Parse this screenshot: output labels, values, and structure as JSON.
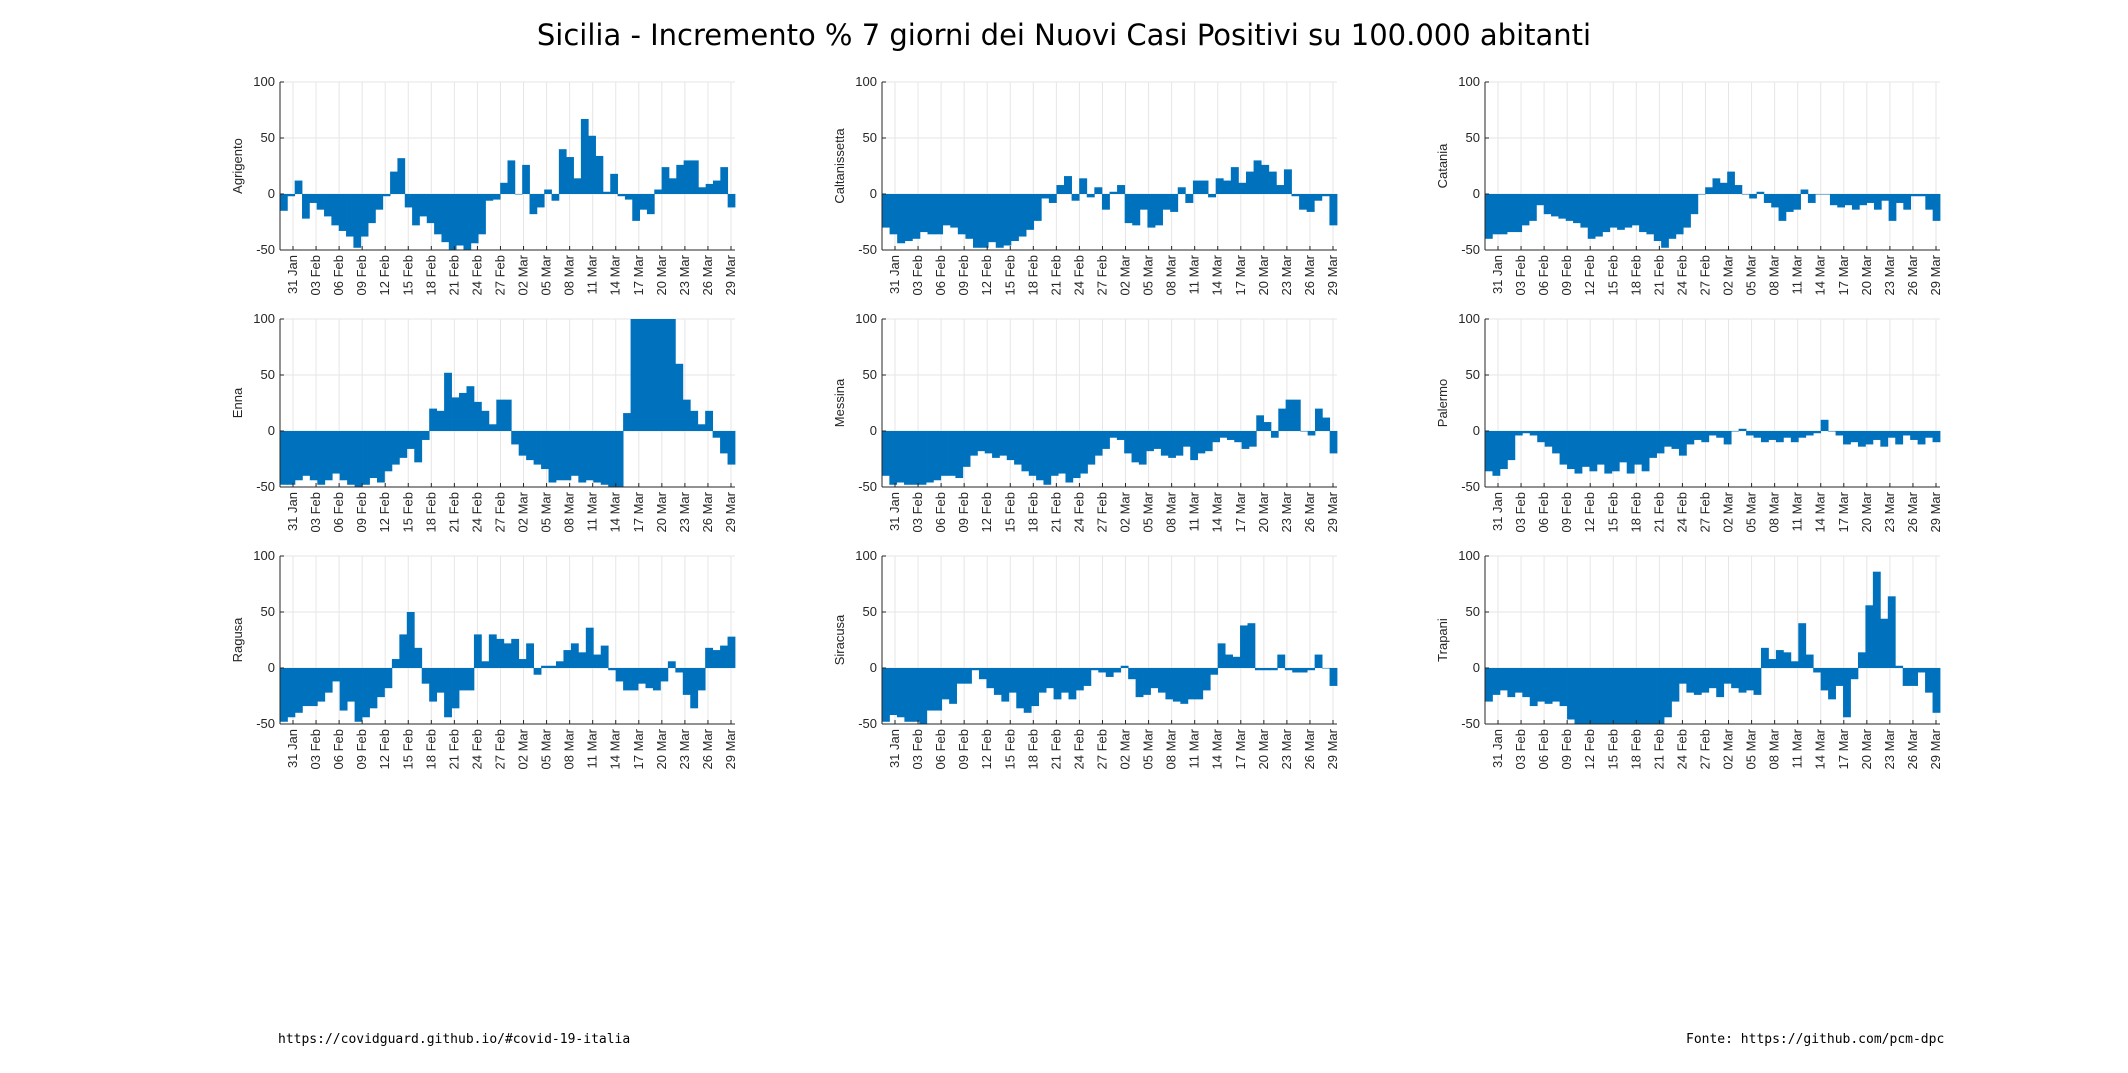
{
  "title": "Sicilia - Incremento % 7 giorni dei Nuovi Casi Positivi su 100.000 abitanti",
  "footer": {
    "left": "https://covidguard.github.io/#covid-19-italia",
    "right": "Fonte: https://github.com/pcm-dpc"
  },
  "colors": {
    "bar": "#0072BD",
    "grid": "#E6E6E6",
    "axis": "#262626"
  },
  "chart_data": [
    {
      "type": "bar",
      "title": "",
      "ylabel": "Agrigento",
      "ylim": [
        -50,
        100
      ],
      "yticks": [
        -50,
        0,
        50,
        100
      ],
      "grid": true,
      "xtick_labels": [
        "31 Jan",
        "03 Feb",
        "06 Feb",
        "09 Feb",
        "12 Feb",
        "15 Feb",
        "18 Feb",
        "21 Feb",
        "24 Feb",
        "27 Feb",
        "02 Mar",
        "05 Mar",
        "08 Mar",
        "11 Mar",
        "14 Mar",
        "17 Mar",
        "20 Mar",
        "23 Mar",
        "26 Mar",
        "29 Mar"
      ],
      "values": [
        -15,
        -2,
        12,
        -22,
        -8,
        -14,
        -20,
        -28,
        -33,
        -38,
        -48,
        -38,
        -26,
        -14,
        -2,
        20,
        32,
        -12,
        -28,
        -20,
        -26,
        -36,
        -43,
        -50,
        -46,
        -50,
        -44,
        -36,
        -6,
        -5,
        10,
        30,
        0,
        26,
        -18,
        -12,
        4,
        -6,
        40,
        33,
        14,
        67,
        52,
        34,
        2,
        18,
        -2,
        -5,
        -24,
        -14,
        -18,
        4,
        24,
        14,
        26,
        30,
        30,
        6,
        9,
        12,
        24,
        -12
      ]
    },
    {
      "type": "bar",
      "title": "",
      "ylabel": "Caltanissetta",
      "ylim": [
        -50,
        100
      ],
      "yticks": [
        -50,
        0,
        50,
        100
      ],
      "grid": true,
      "xtick_labels": [
        "31 Jan",
        "03 Feb",
        "06 Feb",
        "09 Feb",
        "12 Feb",
        "15 Feb",
        "18 Feb",
        "21 Feb",
        "24 Feb",
        "27 Feb",
        "02 Mar",
        "05 Mar",
        "08 Mar",
        "11 Mar",
        "14 Mar",
        "17 Mar",
        "20 Mar",
        "23 Mar",
        "26 Mar",
        "29 Mar"
      ],
      "values": [
        -30,
        -36,
        -44,
        -42,
        -40,
        -34,
        -36,
        -36,
        -28,
        -30,
        -36,
        -40,
        -48,
        -48,
        -43,
        -48,
        -46,
        -42,
        -38,
        -32,
        -24,
        -4,
        -8,
        8,
        16,
        -6,
        14,
        -3,
        6,
        -14,
        2,
        8,
        -26,
        -28,
        -14,
        -30,
        -28,
        -14,
        -16,
        6,
        -8,
        12,
        12,
        -3,
        14,
        12,
        24,
        10,
        20,
        30,
        26,
        20,
        8,
        22,
        -2,
        -14,
        -16,
        -6,
        -2,
        -28
      ]
    },
    {
      "type": "bar",
      "title": "",
      "ylabel": "Catania",
      "ylim": [
        -50,
        100
      ],
      "yticks": [
        -50,
        0,
        50,
        100
      ],
      "grid": true,
      "xtick_labels": [
        "31 Jan",
        "03 Feb",
        "06 Feb",
        "09 Feb",
        "12 Feb",
        "15 Feb",
        "18 Feb",
        "21 Feb",
        "24 Feb",
        "27 Feb",
        "02 Mar",
        "05 Mar",
        "08 Mar",
        "11 Mar",
        "14 Mar",
        "17 Mar",
        "20 Mar",
        "23 Mar",
        "26 Mar",
        "29 Mar"
      ],
      "values": [
        -40,
        -36,
        -36,
        -34,
        -34,
        -28,
        -24,
        -10,
        -18,
        -20,
        -22,
        -24,
        -26,
        -30,
        -40,
        -38,
        -34,
        -30,
        -32,
        -30,
        -28,
        -34,
        -36,
        -42,
        -48,
        -40,
        -36,
        -30,
        -18,
        0,
        6,
        14,
        10,
        20,
        8,
        0,
        -4,
        2,
        -8,
        -12,
        -24,
        -16,
        -14,
        4,
        -8,
        0,
        0,
        -10,
        -12,
        -10,
        -14,
        -10,
        -8,
        -14,
        -6,
        -24,
        -8,
        -14,
        -2,
        -2,
        -14,
        -24
      ]
    },
    {
      "type": "bar",
      "title": "",
      "ylabel": "Enna",
      "ylim": [
        -50,
        100
      ],
      "yticks": [
        -50,
        0,
        50,
        100
      ],
      "grid": true,
      "xtick_labels": [
        "31 Jan",
        "03 Feb",
        "06 Feb",
        "09 Feb",
        "12 Feb",
        "15 Feb",
        "18 Feb",
        "21 Feb",
        "24 Feb",
        "27 Feb",
        "02 Mar",
        "05 Mar",
        "08 Mar",
        "11 Mar",
        "14 Mar",
        "17 Mar",
        "20 Mar",
        "23 Mar",
        "26 Mar",
        "29 Mar"
      ],
      "values": [
        -48,
        -48,
        -44,
        -40,
        -44,
        -48,
        -44,
        -38,
        -44,
        -48,
        -50,
        -48,
        -42,
        -46,
        -36,
        -30,
        -24,
        -16,
        -28,
        -8,
        20,
        18,
        52,
        30,
        34,
        40,
        26,
        18,
        6,
        28,
        28,
        -12,
        -22,
        -26,
        -30,
        -34,
        -46,
        -44,
        -44,
        -40,
        -46,
        -44,
        -46,
        -48,
        -50,
        -50,
        16,
        100,
        100,
        100,
        100,
        100,
        100,
        60,
        28,
        18,
        6,
        18,
        -6,
        -20,
        -30
      ]
    },
    {
      "type": "bar",
      "title": "",
      "ylabel": "Messina",
      "ylim": [
        -50,
        100
      ],
      "yticks": [
        -50,
        0,
        50,
        100
      ],
      "grid": true,
      "xtick_labels": [
        "31 Jan",
        "03 Feb",
        "06 Feb",
        "09 Feb",
        "12 Feb",
        "15 Feb",
        "18 Feb",
        "21 Feb",
        "24 Feb",
        "27 Feb",
        "02 Mar",
        "05 Mar",
        "08 Mar",
        "11 Mar",
        "14 Mar",
        "17 Mar",
        "20 Mar",
        "23 Mar",
        "26 Mar",
        "29 Mar"
      ],
      "values": [
        -40,
        -48,
        -46,
        -48,
        -48,
        -48,
        -46,
        -44,
        -40,
        -40,
        -42,
        -32,
        -22,
        -18,
        -20,
        -24,
        -22,
        -26,
        -30,
        -36,
        -40,
        -44,
        -48,
        -40,
        -38,
        -46,
        -42,
        -38,
        -30,
        -22,
        -16,
        -6,
        -8,
        -20,
        -28,
        -30,
        -18,
        -16,
        -22,
        -24,
        -22,
        -14,
        -26,
        -20,
        -18,
        -10,
        -6,
        -8,
        -10,
        -16,
        -14,
        14,
        8,
        -6,
        20,
        28,
        28,
        0,
        -4,
        20,
        12,
        -20
      ]
    },
    {
      "type": "bar",
      "title": "",
      "ylabel": "Palermo",
      "ylim": [
        -50,
        100
      ],
      "yticks": [
        -50,
        0,
        50,
        100
      ],
      "grid": true,
      "xtick_labels": [
        "31 Jan",
        "03 Feb",
        "06 Feb",
        "09 Feb",
        "12 Feb",
        "15 Feb",
        "18 Feb",
        "21 Feb",
        "24 Feb",
        "27 Feb",
        "02 Mar",
        "05 Mar",
        "08 Mar",
        "11 Mar",
        "14 Mar",
        "17 Mar",
        "20 Mar",
        "23 Mar",
        "26 Mar",
        "29 Mar"
      ],
      "values": [
        -36,
        -40,
        -34,
        -26,
        -4,
        -2,
        -4,
        -10,
        -14,
        -20,
        -30,
        -34,
        -38,
        -32,
        -36,
        -30,
        -38,
        -36,
        -28,
        -38,
        -30,
        -36,
        -24,
        -20,
        -14,
        -16,
        -22,
        -12,
        -8,
        -10,
        -4,
        -6,
        -12,
        0,
        2,
        -4,
        -6,
        -10,
        -8,
        -10,
        -6,
        -10,
        -6,
        -4,
        -2,
        10,
        0,
        -4,
        -12,
        -10,
        -14,
        -12,
        -8,
        -14,
        -6,
        -12,
        -4,
        -8,
        -12,
        -6,
        -10
      ]
    },
    {
      "type": "bar",
      "title": "",
      "ylabel": "Ragusa",
      "ylim": [
        -50,
        100
      ],
      "yticks": [
        -50,
        0,
        50,
        100
      ],
      "grid": true,
      "xtick_labels": [
        "31 Jan",
        "03 Feb",
        "06 Feb",
        "09 Feb",
        "12 Feb",
        "15 Feb",
        "18 Feb",
        "21 Feb",
        "24 Feb",
        "27 Feb",
        "02 Mar",
        "05 Mar",
        "08 Mar",
        "11 Mar",
        "14 Mar",
        "17 Mar",
        "20 Mar",
        "23 Mar",
        "26 Mar",
        "29 Mar"
      ],
      "values": [
        -48,
        -44,
        -40,
        -34,
        -34,
        -30,
        -22,
        -12,
        -38,
        -30,
        -48,
        -44,
        -36,
        -26,
        -18,
        8,
        30,
        50,
        18,
        -14,
        -30,
        -22,
        -44,
        -36,
        -20,
        -20,
        30,
        6,
        30,
        26,
        22,
        26,
        8,
        22,
        -6,
        2,
        2,
        6,
        16,
        22,
        14,
        36,
        12,
        20,
        -2,
        -12,
        -20,
        -20,
        -14,
        -18,
        -20,
        -12,
        6,
        -4,
        -24,
        -36,
        -20,
        18,
        16,
        20,
        28
      ]
    },
    {
      "type": "bar",
      "title": "",
      "ylabel": "Siracusa",
      "ylim": [
        -50,
        100
      ],
      "yticks": [
        -50,
        0,
        50,
        100
      ],
      "grid": true,
      "xtick_labels": [
        "31 Jan",
        "03 Feb",
        "06 Feb",
        "09 Feb",
        "12 Feb",
        "15 Feb",
        "18 Feb",
        "21 Feb",
        "24 Feb",
        "27 Feb",
        "02 Mar",
        "05 Mar",
        "08 Mar",
        "11 Mar",
        "14 Mar",
        "17 Mar",
        "20 Mar",
        "23 Mar",
        "26 Mar",
        "29 Mar"
      ],
      "values": [
        -48,
        -42,
        -44,
        -48,
        -48,
        -50,
        -38,
        -38,
        -28,
        -32,
        -14,
        -14,
        -2,
        -10,
        -18,
        -24,
        -30,
        -22,
        -36,
        -40,
        -34,
        -22,
        -18,
        -28,
        -22,
        -28,
        -20,
        -16,
        -2,
        -4,
        -8,
        -4,
        2,
        -10,
        -26,
        -24,
        -18,
        -22,
        -28,
        -30,
        -32,
        -28,
        -28,
        -20,
        -6,
        22,
        12,
        10,
        38,
        40,
        -2,
        -2,
        -2,
        12,
        -2,
        -4,
        -4,
        -2,
        12,
        0,
        -16
      ]
    },
    {
      "type": "bar",
      "title": "",
      "ylabel": "Trapani",
      "ylim": [
        -50,
        100
      ],
      "yticks": [
        -50,
        0,
        50,
        100
      ],
      "grid": true,
      "xtick_labels": [
        "31 Jan",
        "03 Feb",
        "06 Feb",
        "09 Feb",
        "12 Feb",
        "15 Feb",
        "18 Feb",
        "21 Feb",
        "24 Feb",
        "27 Feb",
        "02 Mar",
        "05 Mar",
        "08 Mar",
        "11 Mar",
        "14 Mar",
        "17 Mar",
        "20 Mar",
        "23 Mar",
        "26 Mar",
        "29 Mar"
      ],
      "values": [
        -30,
        -24,
        -20,
        -26,
        -22,
        -26,
        -34,
        -30,
        -32,
        -30,
        -34,
        -46,
        -50,
        -50,
        -50,
        -50,
        -50,
        -50,
        -50,
        -50,
        -50,
        -50,
        -50,
        -50,
        -44,
        -30,
        -14,
        -22,
        -24,
        -22,
        -18,
        -26,
        -14,
        -18,
        -22,
        -20,
        -24,
        18,
        8,
        16,
        14,
        6,
        40,
        12,
        -4,
        -20,
        -28,
        -16,
        -44,
        -10,
        14,
        56,
        86,
        44,
        64,
        2,
        -16,
        -16,
        -4,
        -22,
        -40
      ]
    }
  ]
}
